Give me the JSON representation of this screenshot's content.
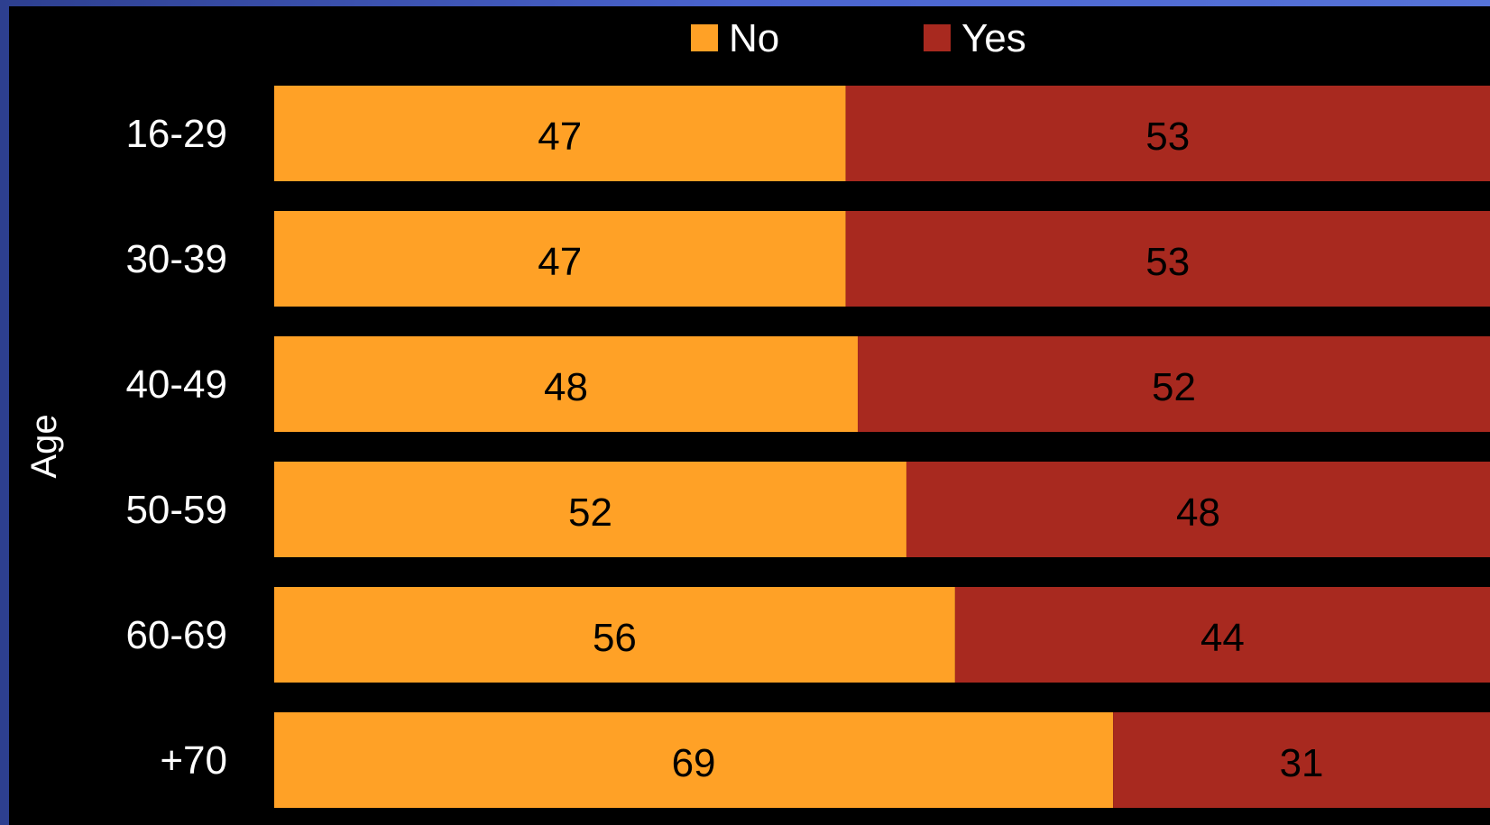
{
  "chart_data": {
    "type": "bar",
    "orientation": "horizontal",
    "stacked": "100-percent",
    "categories": [
      "16-29",
      "30-39",
      "40-49",
      "50-59",
      "60-69",
      "+70"
    ],
    "series": [
      {
        "name": "No",
        "values": [
          47,
          47,
          48,
          52,
          56,
          69
        ],
        "color": "#ffa126",
        "labels": [
          "47",
          "47",
          "48",
          "52",
          "56",
          "69"
        ]
      },
      {
        "name": "Yes",
        "values": [
          53,
          53,
          52,
          48,
          44,
          31
        ],
        "color": "#a8291f",
        "labels": [
          "53",
          "53",
          "52",
          "48",
          "44",
          "31"
        ]
      }
    ],
    "xlabel": "",
    "ylabel": "Age",
    "xlim": [
      0,
      100
    ],
    "legend_position": "top-center",
    "grid": false
  },
  "colors": {
    "background": "#000000",
    "frame": "#4a64cf",
    "category_text": "#ffffff",
    "value_text": "#000000"
  }
}
